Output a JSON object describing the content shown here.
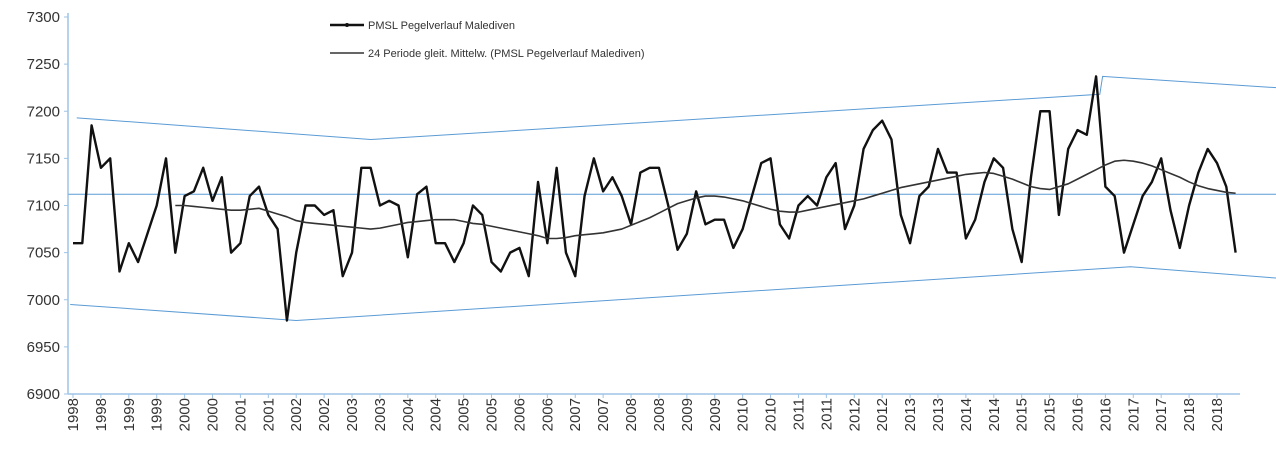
{
  "chart_data": {
    "type": "line",
    "categories": [
      "1998",
      null,
      null,
      "1998",
      null,
      null,
      "1999",
      null,
      null,
      "1999",
      null,
      null,
      "2000",
      null,
      null,
      "2000",
      null,
      null,
      "2001",
      null,
      null,
      "2001",
      null,
      null,
      "2002",
      null,
      null,
      "2002",
      null,
      null,
      "2003",
      null,
      null,
      "2003",
      null,
      null,
      "2004",
      null,
      null,
      "2004",
      null,
      null,
      "2005",
      null,
      null,
      "2005",
      null,
      null,
      "2006",
      null,
      null,
      "2006",
      null,
      null,
      "2007",
      null,
      null,
      "2007",
      null,
      null,
      "2008",
      null,
      null,
      "2008",
      null,
      null,
      "2009",
      null,
      null,
      "2009",
      null,
      null,
      "2010",
      null,
      null,
      "2010",
      null,
      null,
      "2011",
      null,
      null,
      "2011",
      null,
      null,
      "2012",
      null,
      null,
      "2012",
      null,
      null,
      "2013",
      null,
      null,
      "2013",
      null,
      null,
      "2014",
      null,
      null,
      "2014",
      null,
      null,
      "2015",
      null,
      null,
      "2015",
      null,
      null,
      "2016",
      null,
      null,
      "2016",
      null,
      null,
      "2017",
      null,
      null,
      "2017",
      null,
      null,
      "2018",
      null,
      null,
      "2018",
      null,
      null
    ],
    "series": [
      {
        "name": "PMSL Pegelverlauf Malediven",
        "color": "#111111",
        "width": 2.4,
        "values": [
          7060,
          7060,
          7185,
          7140,
          7150,
          7030,
          7060,
          7040,
          7070,
          7100,
          7150,
          7050,
          7110,
          7115,
          7140,
          7105,
          7130,
          7050,
          7060,
          7110,
          7120,
          7090,
          7075,
          6978,
          7050,
          7100,
          7100,
          7090,
          7095,
          7025,
          7050,
          7140,
          7140,
          7100,
          7105,
          7100,
          7045,
          7112,
          7120,
          7060,
          7060,
          7040,
          7060,
          7100,
          7090,
          7040,
          7030,
          7050,
          7055,
          7025,
          7125,
          7060,
          7140,
          7050,
          7025,
          7110,
          7150,
          7115,
          7130,
          7110,
          7080,
          7135,
          7140,
          7140,
          7100,
          7053,
          7070,
          7115,
          7080,
          7085,
          7085,
          7055,
          7075,
          7110,
          7145,
          7150,
          7080,
          7065,
          7100,
          7110,
          7100,
          7130,
          7145,
          7075,
          7100,
          7160,
          7180,
          7190,
          7170,
          7090,
          7060,
          7110,
          7120,
          7160,
          7135,
          7135,
          7065,
          7085,
          7125,
          7150,
          7140,
          7075,
          7040,
          7130,
          7200,
          7200,
          7090,
          7160,
          7180,
          7175,
          7237,
          7120,
          7110,
          7050,
          7080,
          7110,
          7125,
          7150,
          7095,
          7055,
          7100,
          7135,
          7160,
          7145,
          7120,
          7050
        ]
      },
      {
        "name": "24 Periode gleit. Mittelw. (PMSL Pegelverlauf Malediven)",
        "color": "#333333",
        "width": 1.6,
        "values": [
          null,
          null,
          null,
          null,
          null,
          null,
          null,
          null,
          null,
          null,
          null,
          7100,
          7100,
          7099,
          7098,
          7097,
          7096,
          7095,
          7095,
          7096,
          7097,
          7094,
          7091,
          7088,
          7084,
          7082,
          7081,
          7080,
          7079,
          7078,
          7077,
          7076,
          7075,
          7076,
          7078,
          7080,
          7082,
          7083,
          7084,
          7085,
          7085,
          7085,
          7083,
          7081,
          7080,
          7078,
          7076,
          7074,
          7072,
          7070,
          7068,
          7065,
          7065,
          7066,
          7068,
          7069,
          7070,
          7071,
          7073,
          7075,
          7079,
          7083,
          7087,
          7092,
          7097,
          7102,
          7105,
          7108,
          7110,
          7110,
          7109,
          7107,
          7105,
          7102,
          7099,
          7096,
          7094,
          7093,
          7093,
          7095,
          7097,
          7099,
          7101,
          7103,
          7105,
          7107,
          7110,
          7113,
          7116,
          7119,
          7121,
          7123,
          7125,
          7127,
          7129,
          7131,
          7133,
          7134,
          7135,
          7134,
          7131,
          7128,
          7124,
          7120,
          7118,
          7117,
          7120,
          7123,
          7128,
          7133,
          7138,
          7143,
          7147,
          7148,
          7147,
          7145,
          7142,
          7138,
          7134,
          7130,
          7125,
          7121,
          7118,
          7116,
          7114,
          7113
        ]
      }
    ],
    "reference_lines": [
      {
        "color": "#5b9bd5",
        "points": [
          {
            "x": 0.4,
            "y": 7193
          },
          {
            "x": 32,
            "y": 7170
          },
          {
            "x": 110.4,
            "y": 7218
          },
          {
            "x": 110.7,
            "y": 7237
          },
          {
            "x": 129.4,
            "y": 7225
          }
        ]
      },
      {
        "color": "#5b9bd5",
        "points": [
          {
            "x": -0.3,
            "y": 6995
          },
          {
            "x": 24,
            "y": 6978
          },
          {
            "x": 113.7,
            "y": 7035
          },
          {
            "x": 129.4,
            "y": 7023
          }
        ]
      },
      {
        "color": "#5b9bd5",
        "points": [
          {
            "x": -0.5,
            "y": 7112
          },
          {
            "x": 129.4,
            "y": 7112
          }
        ]
      }
    ],
    "ylim": [
      6900,
      7300
    ],
    "yticks": [
      6900,
      6950,
      7000,
      7050,
      7100,
      7150,
      7200,
      7250,
      7300
    ],
    "axis_color": "#9dc3e6",
    "legend": "top"
  }
}
